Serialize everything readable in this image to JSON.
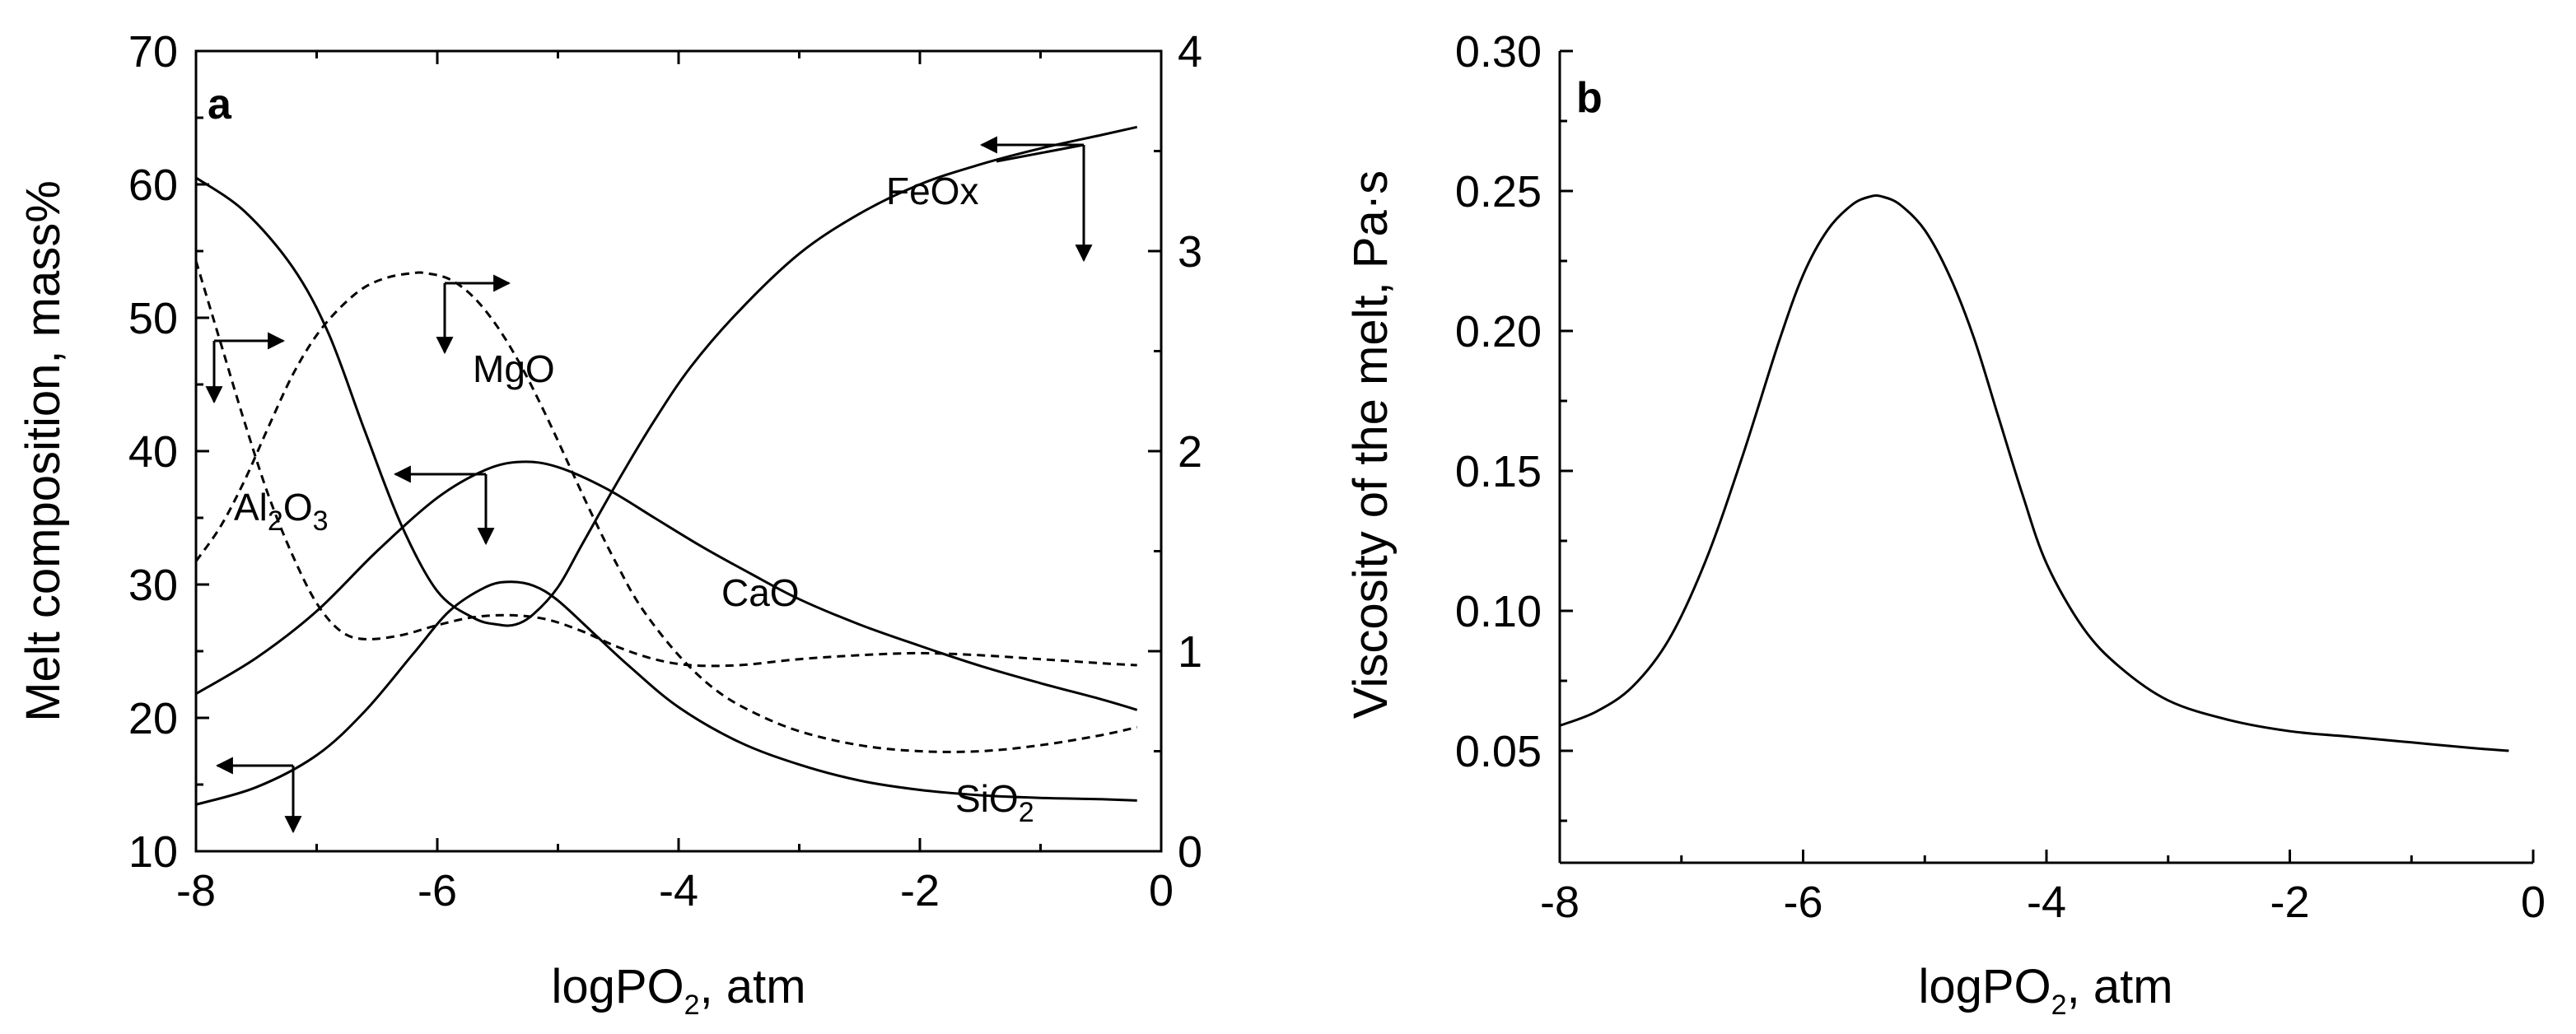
{
  "chart_data": [
    {
      "panel": "a",
      "type": "line",
      "panel_label": "a",
      "xlabel": {
        "main": "logPO",
        "sub": "2",
        "tail": ", atm"
      },
      "ylabel_left": "Melt composition, mass%",
      "ylabel_right": "",
      "xlim": [
        -8,
        0
      ],
      "ylim_left": [
        10,
        70
      ],
      "ylim_right": [
        0,
        4
      ],
      "x_ticks": [
        -8,
        -6,
        -4,
        -2,
        0
      ],
      "x_tick_labels": [
        "-8",
        "-6",
        "-4",
        "-2",
        "0"
      ],
      "y_left_ticks": [
        10,
        20,
        30,
        40,
        50,
        60,
        70
      ],
      "y_left_tick_labels": [
        "10",
        "20",
        "30",
        "40",
        "50",
        "60",
        "70"
      ],
      "y_right_ticks": [
        0,
        1,
        2,
        3,
        4
      ],
      "y_right_tick_labels": [
        "0",
        "1",
        "2",
        "3",
        "4"
      ],
      "series": [
        {
          "name": "FeOx",
          "label": "FeOx",
          "axis": "left",
          "dash": "solid",
          "x": [
            -8.0,
            -7.6,
            -7.2,
            -6.9,
            -6.6,
            -6.3,
            -6.0,
            -5.7,
            -5.5,
            -5.35,
            -5.2,
            -5.0,
            -4.8,
            -4.5,
            -4.2,
            -3.9,
            -3.5,
            -3.0,
            -2.5,
            -2.0,
            -1.5,
            -1.0,
            -0.5,
            -0.2
          ],
          "y": [
            60.5,
            58.0,
            53.8,
            48.8,
            41.5,
            34.5,
            29.5,
            27.5,
            27.0,
            27.0,
            27.8,
            29.8,
            33.0,
            37.8,
            42.3,
            46.3,
            50.5,
            54.8,
            57.8,
            60.0,
            61.5,
            62.7,
            63.7,
            64.3
          ]
        },
        {
          "name": "CaO",
          "label": "CaO",
          "axis": "left",
          "dash": "solid",
          "x": [
            -8.0,
            -7.5,
            -7.0,
            -6.5,
            -6.0,
            -5.6,
            -5.3,
            -5.0,
            -4.6,
            -4.2,
            -3.8,
            -3.4,
            -3.0,
            -2.5,
            -2.0,
            -1.5,
            -1.0,
            -0.5,
            -0.2
          ],
          "y": [
            21.8,
            24.5,
            28.0,
            32.5,
            36.5,
            38.6,
            39.2,
            38.8,
            37.2,
            35.0,
            32.8,
            30.8,
            28.9,
            27.0,
            25.4,
            23.9,
            22.6,
            21.4,
            20.6
          ]
        },
        {
          "name": "SiO2",
          "label": "SiO",
          "label_sub": "2",
          "axis": "left",
          "dash": "solid",
          "x": [
            -8.0,
            -7.5,
            -7.0,
            -6.6,
            -6.2,
            -5.9,
            -5.6,
            -5.4,
            -5.2,
            -5.0,
            -4.7,
            -4.4,
            -4.0,
            -3.5,
            -3.0,
            -2.5,
            -2.0,
            -1.5,
            -1.0,
            -0.5,
            -0.2
          ],
          "y": [
            13.5,
            14.8,
            17.2,
            20.5,
            24.8,
            28.0,
            29.8,
            30.2,
            29.9,
            28.8,
            26.3,
            23.8,
            20.8,
            18.2,
            16.5,
            15.3,
            14.6,
            14.2,
            14.0,
            13.9,
            13.8
          ]
        },
        {
          "name": "MgO",
          "label": "MgO",
          "axis": "right",
          "dash": "dashed",
          "x": [
            -8.0,
            -7.8,
            -7.6,
            -7.4,
            -7.2,
            -7.0,
            -6.8,
            -6.6,
            -6.4,
            -6.2,
            -6.1,
            -5.9,
            -5.7,
            -5.5,
            -5.3,
            -5.1,
            -4.9,
            -4.7,
            -4.5,
            -4.3,
            -4.0,
            -3.7,
            -3.4,
            -3.0,
            -2.5,
            -2.0,
            -1.5,
            -1.0,
            -0.5,
            -0.2
          ],
          "y": [
            1.45,
            1.62,
            1.85,
            2.12,
            2.38,
            2.58,
            2.72,
            2.82,
            2.87,
            2.89,
            2.89,
            2.86,
            2.77,
            2.62,
            2.42,
            2.18,
            1.92,
            1.66,
            1.42,
            1.21,
            0.98,
            0.81,
            0.7,
            0.6,
            0.53,
            0.5,
            0.5,
            0.53,
            0.58,
            0.62
          ]
        },
        {
          "name": "Al2O3",
          "label": "Al",
          "label_sub": "2",
          "label_mid": "O",
          "label_sub2": "3",
          "axis": "right",
          "dash": "dashed",
          "x": [
            -8.0,
            -7.8,
            -7.6,
            -7.4,
            -7.2,
            -7.0,
            -6.8,
            -6.6,
            -6.3,
            -6.0,
            -5.7,
            -5.4,
            -5.1,
            -4.8,
            -4.5,
            -4.2,
            -3.9,
            -3.5,
            -3.0,
            -2.5,
            -2.0,
            -1.5,
            -1.0,
            -0.5,
            -0.2
          ],
          "y": [
            2.95,
            2.55,
            2.15,
            1.78,
            1.48,
            1.24,
            1.1,
            1.06,
            1.08,
            1.13,
            1.17,
            1.18,
            1.16,
            1.1,
            1.02,
            0.96,
            0.93,
            0.93,
            0.96,
            0.98,
            0.99,
            0.98,
            0.96,
            0.94,
            0.93
          ]
        }
      ],
      "annotations": [
        "FeOx",
        "MgO",
        "Al2O3",
        "CaO",
        "SiO2"
      ]
    },
    {
      "panel": "b",
      "type": "line",
      "panel_label": "b",
      "xlabel": {
        "main": "logPO",
        "sub": "2",
        "tail": ", atm"
      },
      "ylabel": "Viscosity of the melt, Pa·s",
      "xlim": [
        -8,
        0
      ],
      "ylim": [
        0.01,
        0.3
      ],
      "x_ticks": [
        -8,
        -6,
        -4,
        -2,
        0
      ],
      "x_tick_labels": [
        "-8",
        "-6",
        "-4",
        "-2",
        "0"
      ],
      "y_ticks": [
        0.05,
        0.1,
        0.15,
        0.2,
        0.25,
        0.3
      ],
      "y_tick_labels": [
        "0.05",
        "0.10",
        "0.15",
        "0.20",
        "0.25",
        "0.30"
      ],
      "series": [
        {
          "name": "Viscosity",
          "dash": "solid",
          "x": [
            -8.0,
            -7.7,
            -7.4,
            -7.1,
            -6.8,
            -6.5,
            -6.2,
            -6.0,
            -5.8,
            -5.6,
            -5.45,
            -5.35,
            -5.2,
            -5.0,
            -4.8,
            -4.6,
            -4.4,
            -4.2,
            -4.0,
            -3.7,
            -3.4,
            -3.0,
            -2.5,
            -2.0,
            -1.5,
            -1.0,
            -0.5,
            -0.2
          ],
          "y": [
            0.059,
            0.064,
            0.073,
            0.09,
            0.118,
            0.155,
            0.196,
            0.22,
            0.236,
            0.245,
            0.248,
            0.248,
            0.245,
            0.236,
            0.22,
            0.198,
            0.17,
            0.142,
            0.117,
            0.094,
            0.08,
            0.068,
            0.061,
            0.057,
            0.055,
            0.053,
            0.051,
            0.05
          ]
        }
      ]
    }
  ]
}
